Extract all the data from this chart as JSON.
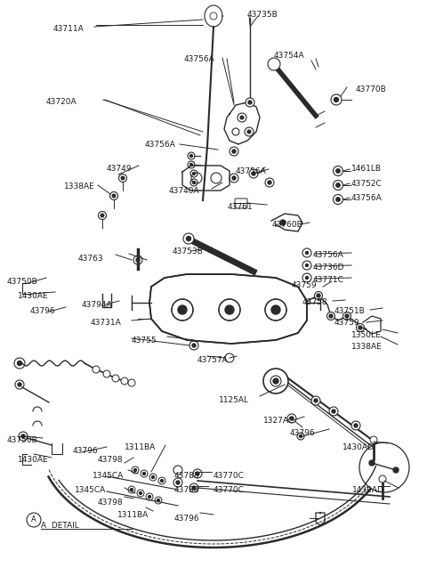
{
  "bg_color": "#ffffff",
  "line_color": "#2a2a2a",
  "text_color": "#1a1a1a",
  "figsize": [
    4.8,
    6.47
  ],
  "dpi": 100,
  "labels_top": [
    [
      "43711A",
      60,
      28
    ],
    [
      "43735B",
      278,
      12
    ],
    [
      "43756A",
      207,
      62
    ],
    [
      "43754A",
      308,
      58
    ],
    [
      "43770B",
      400,
      96
    ],
    [
      "43720A",
      52,
      110
    ],
    [
      "43756A",
      163,
      158
    ],
    [
      "43749",
      120,
      185
    ],
    [
      "1338AE",
      72,
      205
    ],
    [
      "43756A",
      265,
      188
    ],
    [
      "1461LB",
      395,
      185
    ],
    [
      "43752C",
      395,
      202
    ],
    [
      "43756A",
      395,
      218
    ],
    [
      "43740A",
      190,
      210
    ],
    [
      "43761",
      256,
      228
    ],
    [
      "43760B",
      306,
      248
    ],
    [
      "43753B",
      194,
      278
    ],
    [
      "43756A",
      352,
      282
    ],
    [
      "43736D",
      352,
      296
    ],
    [
      "43771C",
      352,
      310
    ],
    [
      "43763",
      88,
      286
    ],
    [
      "43759",
      328,
      316
    ],
    [
      "43750B",
      8,
      312
    ],
    [
      "1430AE",
      20,
      328
    ],
    [
      "43794A",
      92,
      338
    ],
    [
      "43758",
      340,
      335
    ],
    [
      "43796",
      34,
      345
    ],
    [
      "43751B",
      376,
      345
    ],
    [
      "43731A",
      102,
      358
    ],
    [
      "43759",
      376,
      358
    ],
    [
      "1350LE",
      395,
      372
    ],
    [
      "43755",
      148,
      378
    ],
    [
      "1338AE",
      395,
      385
    ],
    [
      "43757A",
      222,
      400
    ],
    [
      "1125AL",
      246,
      445
    ],
    [
      "1327AC",
      296,
      468
    ],
    [
      "43796",
      326,
      482
    ],
    [
      "43750B",
      8,
      490
    ],
    [
      "43796",
      82,
      502
    ],
    [
      "1311BA",
      140,
      498
    ],
    [
      "43798",
      110,
      512
    ],
    [
      "1430AE",
      20,
      512
    ],
    [
      "1430AD",
      385,
      498
    ],
    [
      "1345CA",
      104,
      530
    ],
    [
      "43788",
      196,
      530
    ],
    [
      "43788",
      196,
      546
    ],
    [
      "1345CA",
      84,
      546
    ],
    [
      "43770C",
      240,
      530
    ],
    [
      "43770C",
      240,
      546
    ],
    [
      "1430AD",
      396,
      546
    ],
    [
      "43798",
      110,
      560
    ],
    [
      "1311BA",
      132,
      574
    ],
    [
      "43796",
      196,
      578
    ],
    [
      "A  DETAIL",
      46,
      586
    ]
  ]
}
